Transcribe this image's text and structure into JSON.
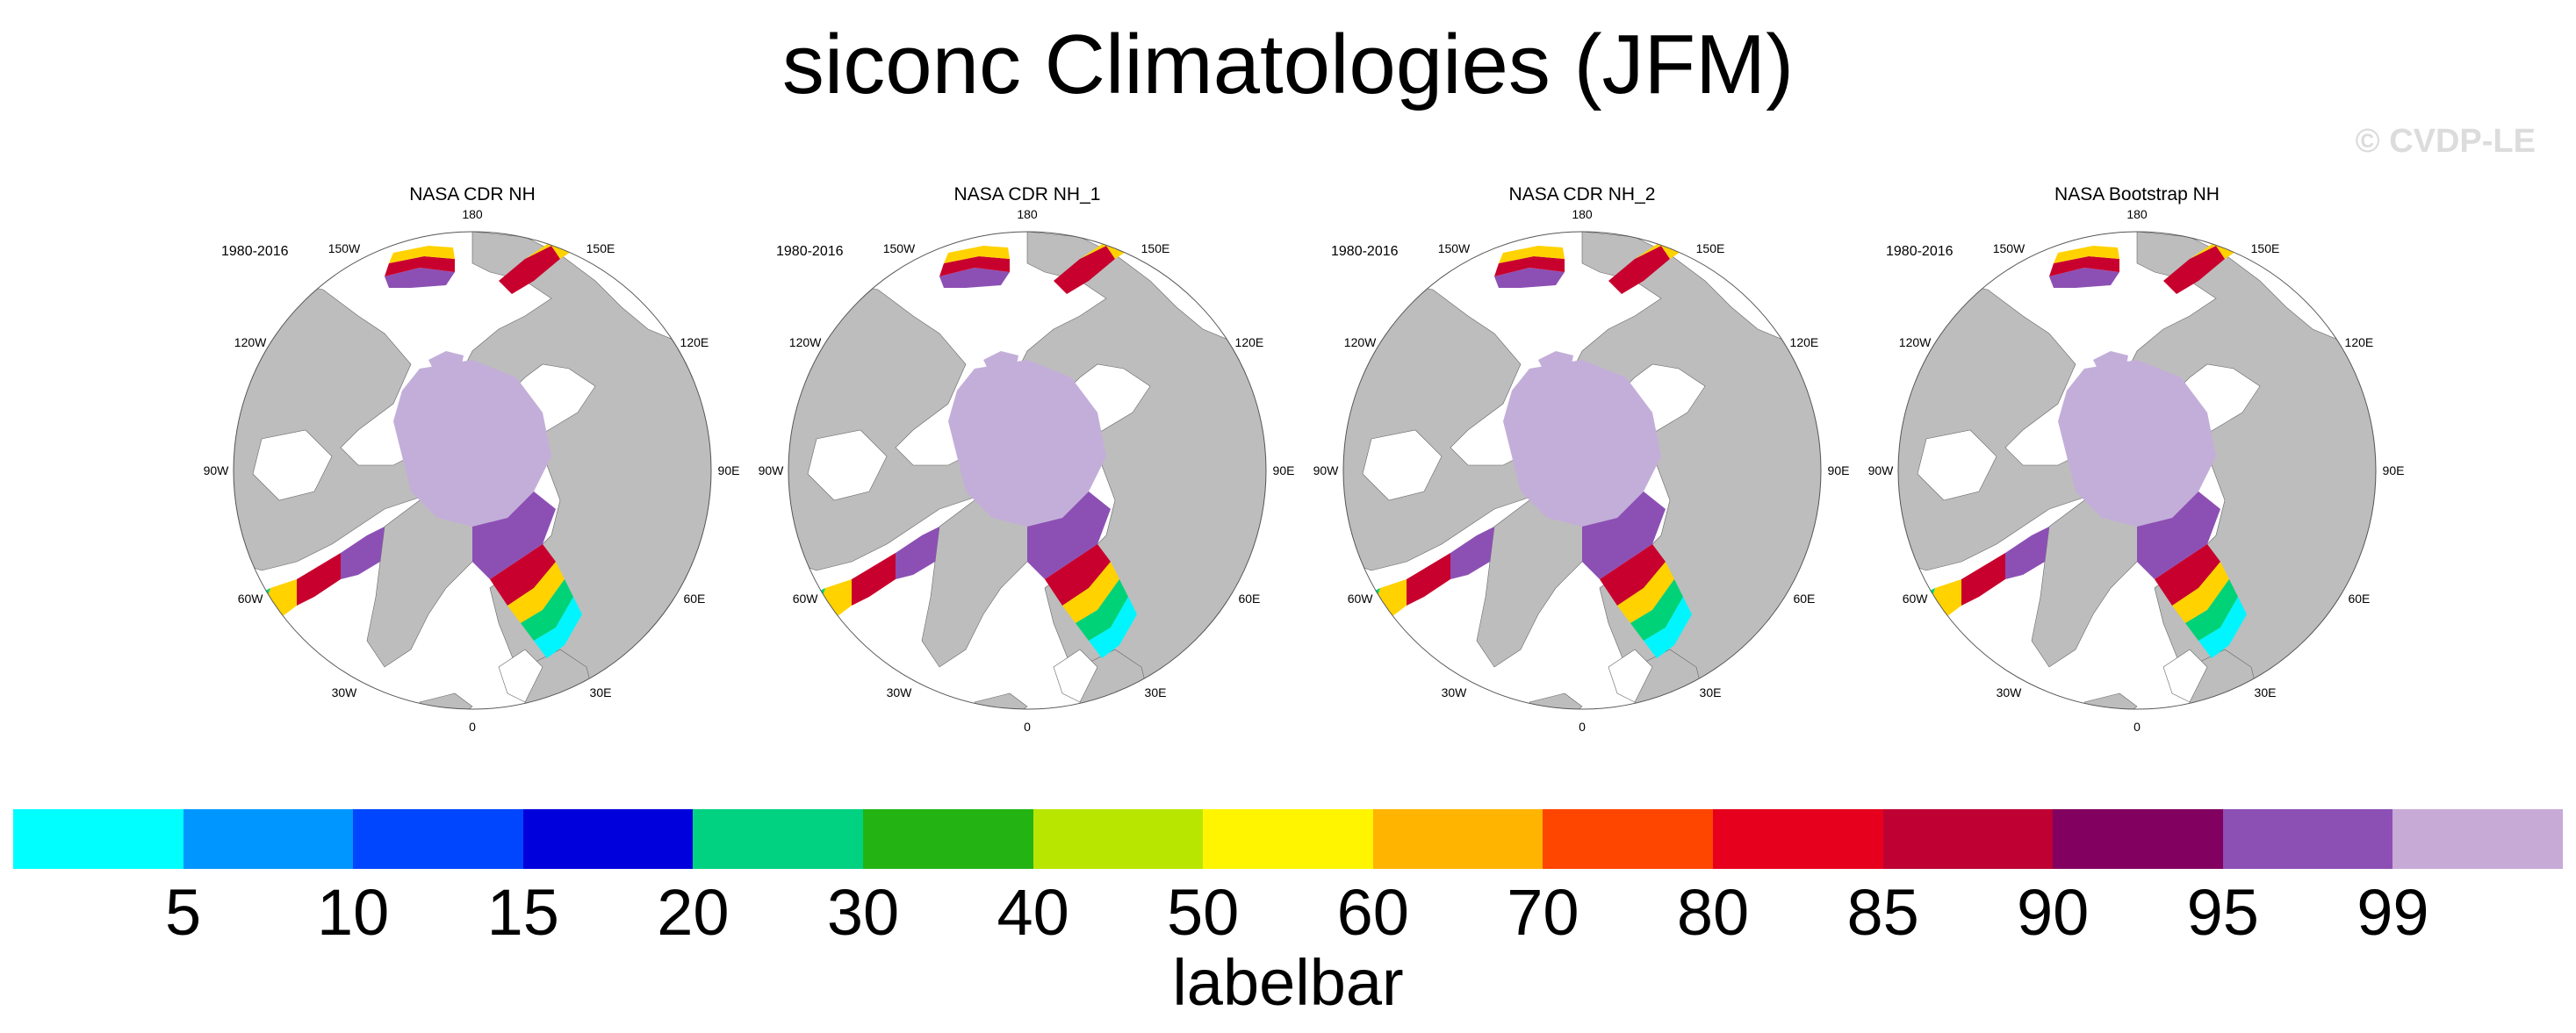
{
  "title": "siconc Climatologies (JFM)",
  "watermark": "© CVDP-LE",
  "panels": [
    {
      "title": "NASA CDR NH",
      "period": "1980-2016"
    },
    {
      "title": "NASA CDR NH_1",
      "period": "1980-2016"
    },
    {
      "title": "NASA CDR NH_2",
      "period": "1980-2016"
    },
    {
      "title": "NASA Bootstrap NH",
      "period": "1980-2016"
    }
  ],
  "longitude_labels": [
    "180",
    "150E",
    "120E",
    "90E",
    "60E",
    "30E",
    "0",
    "30W",
    "60W",
    "90W",
    "120W",
    "150W"
  ],
  "colors": {
    "land": "#bdbdbd",
    "pack_ice": "#c3aed9",
    "ice_95": "#8c50b4",
    "ice_85": "#c8002d",
    "ice_60": "#ffd200",
    "ice_20": "#00d278",
    "ice_5": "#00f5ff"
  },
  "labelbar": {
    "title": "labelbar",
    "colors": [
      "#00ffff",
      "#0096ff",
      "#0046ff",
      "#0000dc",
      "#00d282",
      "#23b414",
      "#b9e600",
      "#fff500",
      "#ffb400",
      "#ff4600",
      "#e6001e",
      "#be0032",
      "#82005f",
      "#8c50b4",
      "#c8aad7"
    ],
    "ticks": [
      "5",
      "10",
      "15",
      "20",
      "30",
      "40",
      "50",
      "60",
      "70",
      "80",
      "85",
      "90",
      "95",
      "99"
    ]
  }
}
